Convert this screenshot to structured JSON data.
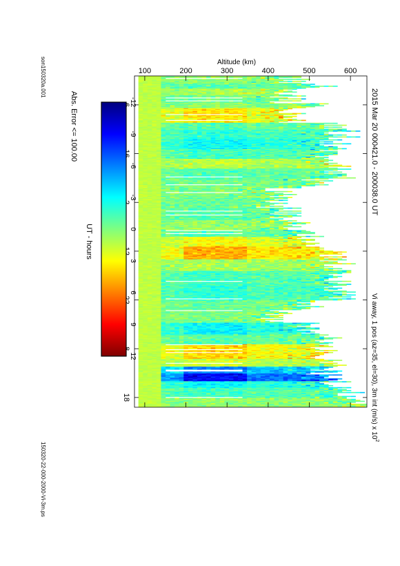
{
  "header": {
    "title": "2015 Mar 20     000421.0 - 200038.0 UT",
    "subtitle": "Vi away, 1 pos (az=35, el=30), 3m int (m/s) x 10",
    "subtitle_exponent": "2",
    "error_note": "Abs. Error <= 100.00",
    "left_footer": "son150320a.001",
    "right_footer": "150320-22-000-2000-Vi-3m.ps"
  },
  "chart_data": {
    "type": "heatmap",
    "title": "2015 Mar 20     000421.0 - 200038.0 UT",
    "xlabel": "UT - hours",
    "ylabel": "Altitude (km)",
    "x_tick_labels": [
      "6",
      "16",
      "2",
      "12",
      "22",
      "8",
      "18"
    ],
    "x_tick_positions_hours": [
      6,
      16,
      26,
      36,
      46,
      56,
      66
    ],
    "xlim_hours": [
      0.07,
      68.0
    ],
    "ylim_km": [
      75,
      640
    ],
    "y_ticks": [
      100,
      200,
      300,
      400,
      500,
      600
    ],
    "colorbar": {
      "label": "Vi away, 1 pos (az=35, el=30), 3m int (m/s) x 10",
      "exponent": "2",
      "range": [
        -12,
        12
      ],
      "ticks": [
        -12,
        -9,
        -6,
        -3,
        0,
        3,
        6,
        9,
        12
      ],
      "colors": [
        "#00007f",
        "#0000ff",
        "#007fff",
        "#00ffff",
        "#7fff7f",
        "#ffff00",
        "#ff7f00",
        "#ff0000",
        "#7f0000"
      ]
    },
    "profile_segments": [
      {
        "t": [
          0.07,
          1.5
        ],
        "top": 460,
        "v": 0.3
      },
      {
        "t": [
          1.5,
          2.5
        ],
        "top": 530,
        "v": -1.0
      },
      {
        "t": [
          2.5,
          4.0
        ],
        "top": 430,
        "v": 1.0
      },
      {
        "t": [
          4.0,
          5.5
        ],
        "top": 440,
        "v": -0.5
      },
      {
        "t": [
          5.5,
          6.5
        ],
        "top": 500,
        "v": 0.5
      },
      {
        "t": [
          6.5,
          9.5
        ],
        "top": 460,
        "v": 3.5
      },
      {
        "t": [
          9.5,
          11.0
        ],
        "top": 560,
        "v": -1.0
      },
      {
        "t": [
          11.0,
          13.0
        ],
        "top": 580,
        "v": -2.0
      },
      {
        "t": [
          13.0,
          15.0
        ],
        "top": 560,
        "v": -3.0
      },
      {
        "t": [
          15.0,
          17.0
        ],
        "top": 550,
        "v": -1.5
      },
      {
        "t": [
          17.0,
          19.0
        ],
        "top": 570,
        "v": 1.5
      },
      {
        "t": [
          19.0,
          21.0
        ],
        "top": 560,
        "v": -1.0
      },
      {
        "t": [
          21.0,
          22.5
        ],
        "top": 520,
        "v": -0.5
      },
      {
        "t": [
          22.5,
          25.0
        ],
        "top": 430,
        "v": 0.0
      },
      {
        "t": [
          25.0,
          27.0
        ],
        "top": 410,
        "v": -0.5
      },
      {
        "t": [
          27.0,
          29.5
        ],
        "top": 440,
        "v": -1.0
      },
      {
        "t": [
          29.5,
          31.5
        ],
        "top": 470,
        "v": 0.5
      },
      {
        "t": [
          31.5,
          33.0
        ],
        "top": 490,
        "v": -1.0
      },
      {
        "t": [
          33.0,
          35.0
        ],
        "top": 480,
        "v": 3.0
      },
      {
        "t": [
          35.0,
          37.5
        ],
        "top": 540,
        "v": 5.0
      },
      {
        "t": [
          37.5,
          40.0
        ],
        "top": 560,
        "v": 1.0
      },
      {
        "t": [
          40.0,
          43.0
        ],
        "top": 560,
        "v": -1.5
      },
      {
        "t": [
          43.0,
          46.0
        ],
        "top": 570,
        "v": -2.0
      },
      {
        "t": [
          46.0,
          48.0
        ],
        "top": 500,
        "v": -0.5
      },
      {
        "t": [
          48.0,
          50.5
        ],
        "top": 420,
        "v": 0.0
      },
      {
        "t": [
          50.5,
          53.0
        ],
        "top": 500,
        "v": -3.0
      },
      {
        "t": [
          53.0,
          55.0
        ],
        "top": 540,
        "v": -1.0
      },
      {
        "t": [
          55.0,
          58.0
        ],
        "top": 520,
        "v": 4.0
      },
      {
        "t": [
          58.0,
          59.5
        ],
        "top": 560,
        "v": 2.0
      },
      {
        "t": [
          59.5,
          61.0
        ],
        "top": 540,
        "v": -6.0
      },
      {
        "t": [
          61.0,
          62.5
        ],
        "top": 530,
        "v": -9.0
      },
      {
        "t": [
          62.5,
          64.0
        ],
        "top": 560,
        "v": -3.0
      },
      {
        "t": [
          64.0,
          66.0
        ],
        "top": 600,
        "v": -1.5
      },
      {
        "t": [
          66.0,
          68.0
        ],
        "top": 620,
        "v": 0.5
      }
    ]
  }
}
